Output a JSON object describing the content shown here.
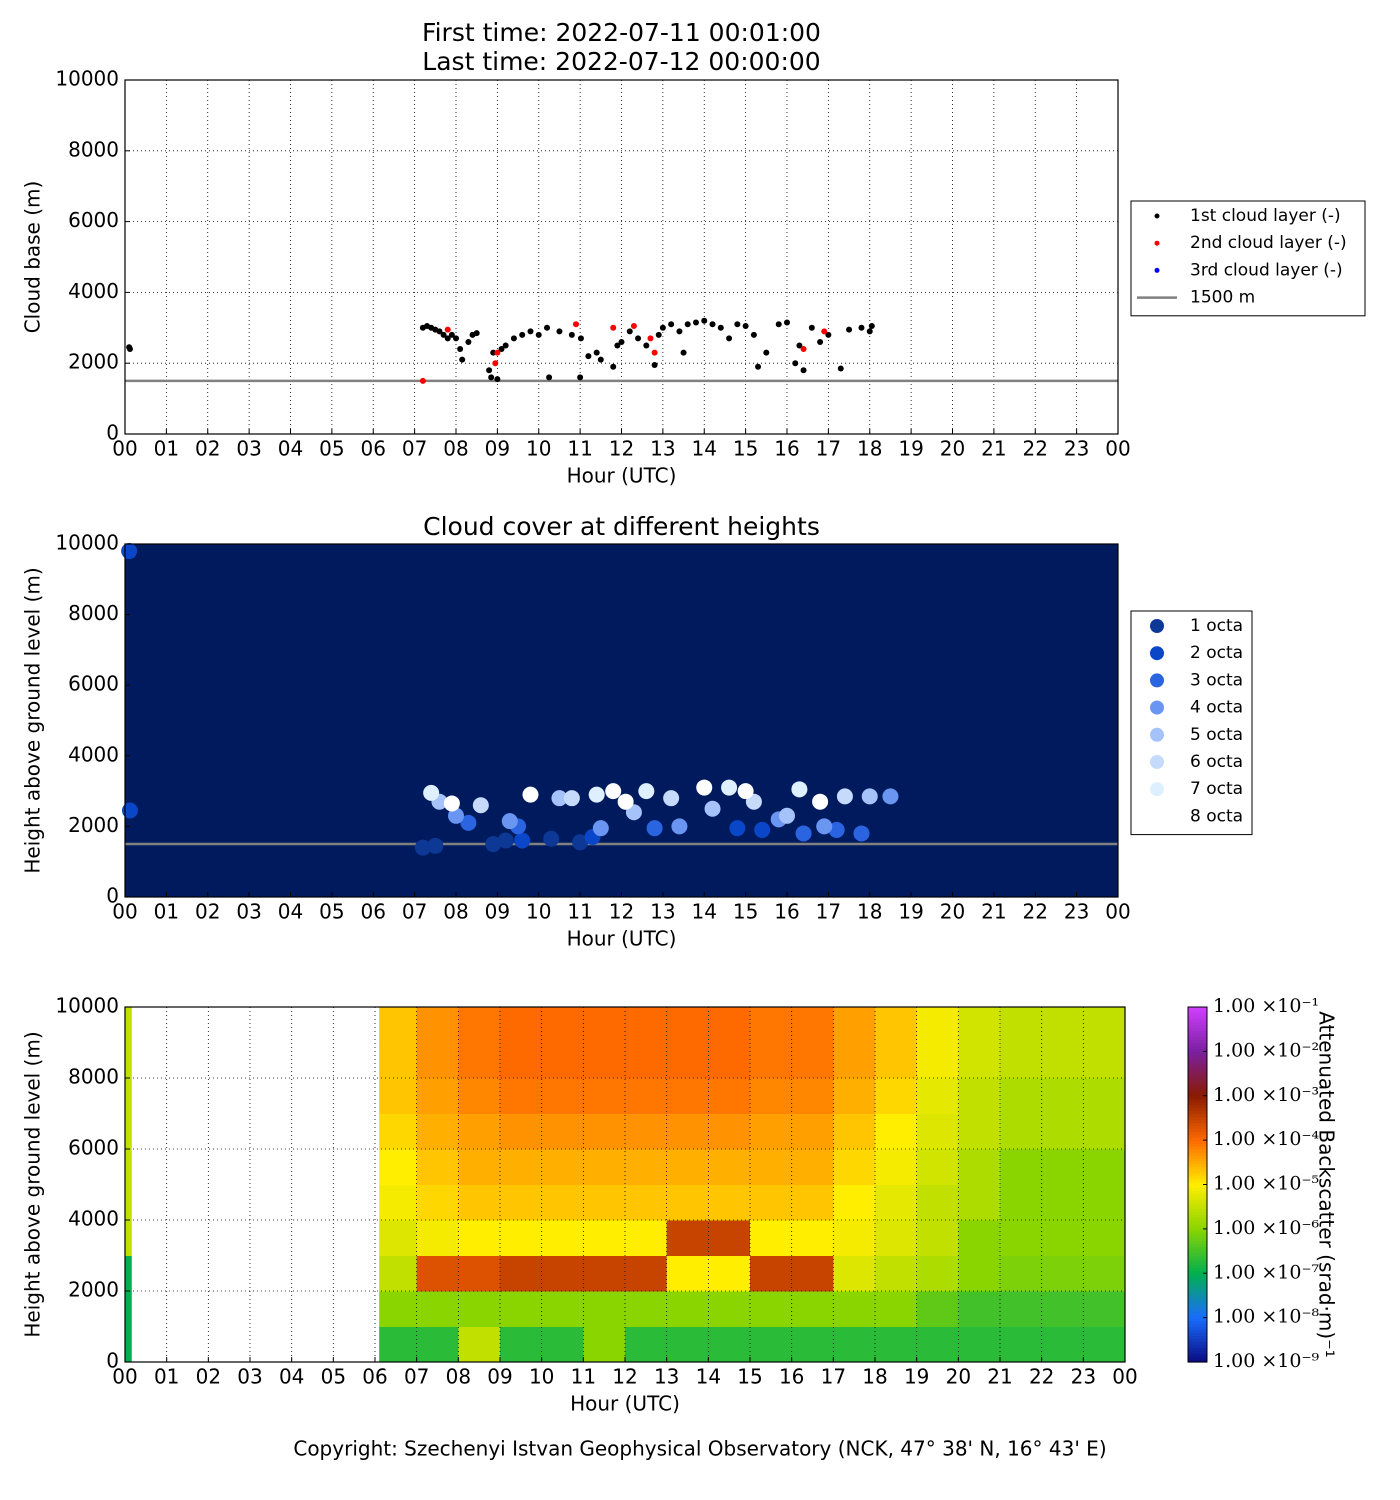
{
  "chart_data": [
    {
      "type": "scatter",
      "title": "First time: 2022-07-11 00:01:00",
      "subtitle": "Last time: 2022-07-12 00:00:00",
      "xlabel": "Hour (UTC)",
      "ylabel": "Cloud base (m)",
      "xlim": [
        0,
        24
      ],
      "ylim": [
        0,
        10000
      ],
      "xticks": [
        {
          "value": 0,
          "label": "00"
        },
        {
          "value": 1,
          "label": "01"
        },
        {
          "value": 2,
          "label": "02"
        },
        {
          "value": 3,
          "label": "03"
        },
        {
          "value": 4,
          "label": "04"
        },
        {
          "value": 5,
          "label": "05"
        },
        {
          "value": 6,
          "label": "06"
        },
        {
          "value": 7,
          "label": "07"
        },
        {
          "value": 8,
          "label": "08"
        },
        {
          "value": 9,
          "label": "09"
        },
        {
          "value": 10,
          "label": "10"
        },
        {
          "value": 11,
          "label": "11"
        },
        {
          "value": 12,
          "label": "12"
        },
        {
          "value": 13,
          "label": "13"
        },
        {
          "value": 14,
          "label": "14"
        },
        {
          "value": 15,
          "label": "15"
        },
        {
          "value": 16,
          "label": "16"
        },
        {
          "value": 17,
          "label": "17"
        },
        {
          "value": 18,
          "label": "18"
        },
        {
          "value": 19,
          "label": "19"
        },
        {
          "value": 20,
          "label": "20"
        },
        {
          "value": 21,
          "label": "21"
        },
        {
          "value": 22,
          "label": "22"
        },
        {
          "value": 23,
          "label": "23"
        },
        {
          "value": 24,
          "label": "00"
        }
      ],
      "yticks": [
        0,
        2000,
        4000,
        6000,
        8000,
        10000
      ],
      "grid": true,
      "legend": "right",
      "series": [
        {
          "name": "1st cloud layer (-)",
          "color": "#000000",
          "x": [
            0.1,
            0.12,
            7.2,
            7.3,
            7.4,
            7.5,
            7.6,
            7.7,
            7.8,
            7.9,
            8.0,
            8.1,
            8.15,
            8.3,
            8.4,
            8.5,
            8.8,
            8.85,
            8.9,
            9.0,
            9.1,
            9.2,
            9.4,
            9.6,
            9.8,
            10.0,
            10.2,
            10.25,
            10.5,
            10.8,
            11.0,
            11.02,
            11.2,
            11.4,
            11.5,
            11.8,
            11.9,
            12.0,
            12.2,
            12.4,
            12.6,
            12.8,
            12.9,
            13.0,
            13.2,
            13.4,
            13.5,
            13.6,
            13.8,
            14.0,
            14.2,
            14.4,
            14.6,
            14.8,
            15.0,
            15.2,
            15.3,
            15.5,
            15.8,
            16.0,
            16.2,
            16.3,
            16.4,
            16.6,
            16.8,
            17.0,
            17.3,
            17.5,
            17.8,
            18.0,
            18.05
          ],
          "values": [
            2450,
            2400,
            3000,
            3050,
            3000,
            2950,
            2900,
            2800,
            2700,
            2800,
            2700,
            2400,
            2100,
            2600,
            2800,
            2850,
            1800,
            1600,
            2300,
            1550,
            2400,
            2500,
            2700,
            2800,
            2900,
            2800,
            3000,
            1600,
            2900,
            2800,
            1600,
            2700,
            2200,
            2300,
            2100,
            1900,
            2500,
            2600,
            2900,
            2700,
            2500,
            1950,
            2800,
            3000,
            3100,
            2900,
            2300,
            3100,
            3150,
            3200,
            3100,
            3000,
            2700,
            3100,
            3050,
            2800,
            1900,
            2300,
            3100,
            3150,
            2000,
            2500,
            1800,
            3000,
            2600,
            2800,
            1850,
            2950,
            3000,
            2900,
            3050
          ]
        },
        {
          "name": "2nd cloud layer (-)",
          "color": "#ff0000",
          "x": [
            7.2,
            7.8,
            8.95,
            9.0,
            10.9,
            11.8,
            12.3,
            12.7,
            12.8,
            16.4,
            16.9
          ],
          "values": [
            1500,
            2950,
            2000,
            2300,
            3100,
            3000,
            3050,
            2700,
            2300,
            2400,
            2900
          ]
        },
        {
          "name": "3rd cloud layer (-)",
          "color": "#0000ff",
          "x": [],
          "values": []
        }
      ],
      "reference_line": {
        "name": "1500 m",
        "value": 1500,
        "color": "#808080"
      }
    },
    {
      "type": "scatter",
      "title": "Cloud cover at different heights",
      "xlabel": "Hour (UTC)",
      "ylabel": "Height above ground level (m)",
      "xlim": [
        0,
        24
      ],
      "ylim": [
        0,
        10000
      ],
      "xticks": [
        {
          "value": 0,
          "label": "00"
        },
        {
          "value": 1,
          "label": "01"
        },
        {
          "value": 2,
          "label": "02"
        },
        {
          "value": 3,
          "label": "03"
        },
        {
          "value": 4,
          "label": "04"
        },
        {
          "value": 5,
          "label": "05"
        },
        {
          "value": 6,
          "label": "06"
        },
        {
          "value": 7,
          "label": "07"
        },
        {
          "value": 8,
          "label": "08"
        },
        {
          "value": 9,
          "label": "09"
        },
        {
          "value": 10,
          "label": "10"
        },
        {
          "value": 11,
          "label": "11"
        },
        {
          "value": 12,
          "label": "12"
        },
        {
          "value": 13,
          "label": "13"
        },
        {
          "value": 14,
          "label": "14"
        },
        {
          "value": 15,
          "label": "15"
        },
        {
          "value": 16,
          "label": "16"
        },
        {
          "value": 17,
          "label": "17"
        },
        {
          "value": 18,
          "label": "18"
        },
        {
          "value": 19,
          "label": "19"
        },
        {
          "value": 20,
          "label": "20"
        },
        {
          "value": 21,
          "label": "21"
        },
        {
          "value": 22,
          "label": "22"
        },
        {
          "value": 23,
          "label": "23"
        },
        {
          "value": 24,
          "label": "00"
        }
      ],
      "yticks": [
        0,
        2000,
        4000,
        6000,
        8000,
        10000
      ],
      "grid": false,
      "legend": "right",
      "background": "#001a5e",
      "series": [
        {
          "name": "1 octa",
          "color": "#0d3896",
          "x": [
            7.2,
            7.5,
            8.9,
            9.2,
            10.3,
            11.0
          ],
          "values": [
            1400,
            1450,
            1500,
            1600,
            1650,
            1550
          ]
        },
        {
          "name": "2 octa",
          "color": "#0a46c8",
          "x": [
            0.1,
            0.12,
            9.6,
            11.3,
            14.8,
            15.4
          ],
          "values": [
            9800,
            2450,
            1600,
            1700,
            1950,
            1900
          ]
        },
        {
          "name": "3 octa",
          "color": "#2a64e0",
          "x": [
            8.3,
            9.5,
            12.8,
            16.4,
            17.2,
            17.8
          ],
          "values": [
            2100,
            2000,
            1950,
            1800,
            1900,
            1800
          ]
        },
        {
          "name": "4 octa",
          "color": "#6a96f2",
          "x": [
            8.0,
            9.3,
            11.5,
            13.4,
            15.8,
            16.9,
            18.5
          ],
          "values": [
            2300,
            2150,
            1950,
            2000,
            2200,
            2000,
            2850
          ]
        },
        {
          "name": "5 octa",
          "color": "#a6c2fa",
          "x": [
            7.6,
            10.5,
            12.3,
            14.2,
            16.0,
            18.0
          ],
          "values": [
            2700,
            2800,
            2400,
            2500,
            2300,
            2850
          ]
        },
        {
          "name": "6 octa",
          "color": "#c6dbfc",
          "x": [
            8.6,
            10.8,
            13.2,
            15.2,
            17.4
          ],
          "values": [
            2600,
            2800,
            2800,
            2700,
            2850
          ]
        },
        {
          "name": "7 octa",
          "color": "#def0ff",
          "x": [
            7.4,
            11.4,
            12.6,
            14.6,
            16.3
          ],
          "values": [
            2950,
            2900,
            3000,
            3100,
            3050
          ]
        },
        {
          "name": "8 octa",
          "color": "#ffffff",
          "x": [
            7.9,
            9.8,
            11.8,
            12.1,
            14.0,
            15.0,
            16.8
          ],
          "values": [
            2650,
            2900,
            3000,
            2700,
            3100,
            3000,
            2700
          ]
        }
      ],
      "reference_line": {
        "value": 1500,
        "color": "#808080"
      }
    },
    {
      "type": "heatmap",
      "xlabel": "Hour (UTC)",
      "ylabel": "Height above ground level (m)",
      "xlim": [
        0,
        24
      ],
      "ylim": [
        0,
        10000
      ],
      "xticks": [
        {
          "value": 0,
          "label": "00"
        },
        {
          "value": 1,
          "label": "01"
        },
        {
          "value": 2,
          "label": "02"
        },
        {
          "value": 3,
          "label": "03"
        },
        {
          "value": 4,
          "label": "04"
        },
        {
          "value": 5,
          "label": "05"
        },
        {
          "value": 6,
          "label": "06"
        },
        {
          "value": 7,
          "label": "07"
        },
        {
          "value": 8,
          "label": "08"
        },
        {
          "value": 9,
          "label": "09"
        },
        {
          "value": 10,
          "label": "10"
        },
        {
          "value": 11,
          "label": "11"
        },
        {
          "value": 12,
          "label": "12"
        },
        {
          "value": 13,
          "label": "13"
        },
        {
          "value": 14,
          "label": "14"
        },
        {
          "value": 15,
          "label": "15"
        },
        {
          "value": 16,
          "label": "16"
        },
        {
          "value": 17,
          "label": "17"
        },
        {
          "value": 18,
          "label": "18"
        },
        {
          "value": 19,
          "label": "19"
        },
        {
          "value": 20,
          "label": "20"
        },
        {
          "value": 21,
          "label": "21"
        },
        {
          "value": 22,
          "label": "22"
        },
        {
          "value": 23,
          "label": "23"
        },
        {
          "value": 24,
          "label": "00"
        }
      ],
      "yticks": [
        0,
        2000,
        4000,
        6000,
        8000,
        10000
      ],
      "grid": true,
      "x_bins": [
        0,
        0.15,
        6.1,
        7,
        8,
        9,
        10,
        11,
        12,
        13,
        14,
        15,
        16,
        17,
        18,
        19,
        20,
        21,
        22,
        23,
        24
      ],
      "y_bins": [
        0,
        1000,
        2000,
        3000,
        4000,
        5000,
        6000,
        7000,
        8000,
        9000,
        10000
      ],
      "z": [
        [
          1e-07,
          1e-07,
          1e-07,
          3e-06,
          3e-06,
          3e-06,
          3e-06,
          3e-06,
          3e-06,
          3e-06
        ],
        [
          null,
          null,
          null,
          null,
          null,
          null,
          null,
          null,
          null,
          null
        ],
        [
          2e-07,
          1e-06,
          3e-06,
          5e-06,
          8e-06,
          1e-05,
          1.5e-05,
          2e-05,
          2e-05,
          2e-05
        ],
        [
          2e-07,
          1e-06,
          0.0002,
          8e-06,
          1.5e-05,
          2e-05,
          3e-05,
          4e-05,
          5e-05,
          5e-05
        ],
        [
          3e-06,
          1e-06,
          0.0002,
          1e-05,
          2e-05,
          3e-05,
          4e-05,
          6e-05,
          8e-05,
          8e-05
        ],
        [
          2e-07,
          1e-06,
          0.0003,
          1e-05,
          2e-05,
          3e-05,
          5e-05,
          8e-05,
          0.0001,
          0.0001
        ],
        [
          2e-07,
          1e-06,
          0.0003,
          1e-05,
          2e-05,
          3e-05,
          5e-05,
          8e-05,
          0.0001,
          0.0001
        ],
        [
          1e-06,
          1e-06,
          0.0003,
          1e-05,
          2e-05,
          3e-05,
          5e-05,
          8e-05,
          0.0001,
          0.0001
        ],
        [
          2e-07,
          1e-06,
          0.0003,
          1e-05,
          2e-05,
          3e-05,
          5e-05,
          8e-05,
          0.0001,
          0.0001
        ],
        [
          2e-07,
          1e-06,
          1e-05,
          0.0003,
          2e-05,
          3e-05,
          5e-05,
          8e-05,
          0.0001,
          0.0001
        ],
        [
          2e-07,
          1e-06,
          1e-05,
          0.0003,
          2e-05,
          3e-05,
          5e-05,
          8e-05,
          0.0001,
          0.0001
        ],
        [
          2e-07,
          1e-06,
          0.0003,
          1e-05,
          2e-05,
          3e-05,
          4e-05,
          6e-05,
          8e-05,
          8e-05
        ],
        [
          2e-07,
          1e-06,
          0.0003,
          1e-05,
          2e-05,
          3e-05,
          4e-05,
          6e-05,
          8e-05,
          8e-05
        ],
        [
          2e-07,
          1e-06,
          5e-06,
          8e-06,
          1e-05,
          1.5e-05,
          2e-05,
          3e-05,
          4e-05,
          4e-05
        ],
        [
          2e-07,
          1e-06,
          3e-06,
          5e-06,
          6e-06,
          8e-06,
          1e-05,
          1.5e-05,
          2e-05,
          2e-05
        ],
        [
          2e-07,
          5e-07,
          2e-06,
          3e-06,
          3e-06,
          4e-06,
          5e-06,
          6e-06,
          8e-06,
          8e-06
        ],
        [
          2e-07,
          3e-07,
          1e-06,
          1e-06,
          2e-06,
          2e-06,
          3e-06,
          3e-06,
          4e-06,
          4e-06
        ],
        [
          2e-07,
          3e-07,
          8e-07,
          1e-06,
          1e-06,
          1e-06,
          2e-06,
          2e-06,
          3e-06,
          3e-06
        ],
        [
          2e-07,
          3e-07,
          8e-07,
          1e-06,
          1e-06,
          1e-06,
          2e-06,
          2e-06,
          3e-06,
          3e-06
        ],
        [
          2e-07,
          3e-07,
          8e-07,
          1e-06,
          1e-06,
          1e-06,
          2e-06,
          2e-06,
          3e-06,
          3e-06
        ]
      ],
      "colorbar_label": "Attenuated Backscatter (srad·m)⁻¹",
      "color_scale": "log",
      "cticks": [
        {
          "value": 1e-09,
          "label": "1.00 ×10⁻⁹"
        },
        {
          "value": 1e-08,
          "label": "1.00 ×10⁻⁸"
        },
        {
          "value": 1e-07,
          "label": "1.00 ×10⁻⁷"
        },
        {
          "value": 1e-06,
          "label": "1.00 ×10⁻⁶"
        },
        {
          "value": 1e-05,
          "label": "1.00 ×10⁻⁵"
        },
        {
          "value": 0.0001,
          "label": "1.00 ×10⁻⁴"
        },
        {
          "value": 0.001,
          "label": "1.00 ×10⁻³"
        },
        {
          "value": 0.01,
          "label": "1.00 ×10⁻²"
        },
        {
          "value": 0.1,
          "label": "1.00 ×10⁻¹"
        }
      ],
      "colormap": [
        "#0a0a80",
        "#1a6cff",
        "#00b050",
        "#8ad400",
        "#ffee00",
        "#ff6a00",
        "#8a1a00",
        "#7a1fa0",
        "#d040ff"
      ]
    }
  ],
  "footer": "Copyright: Szechenyi Istvan Geophysical Observatory (NCK, 47° 38' N, 16° 43' E)"
}
